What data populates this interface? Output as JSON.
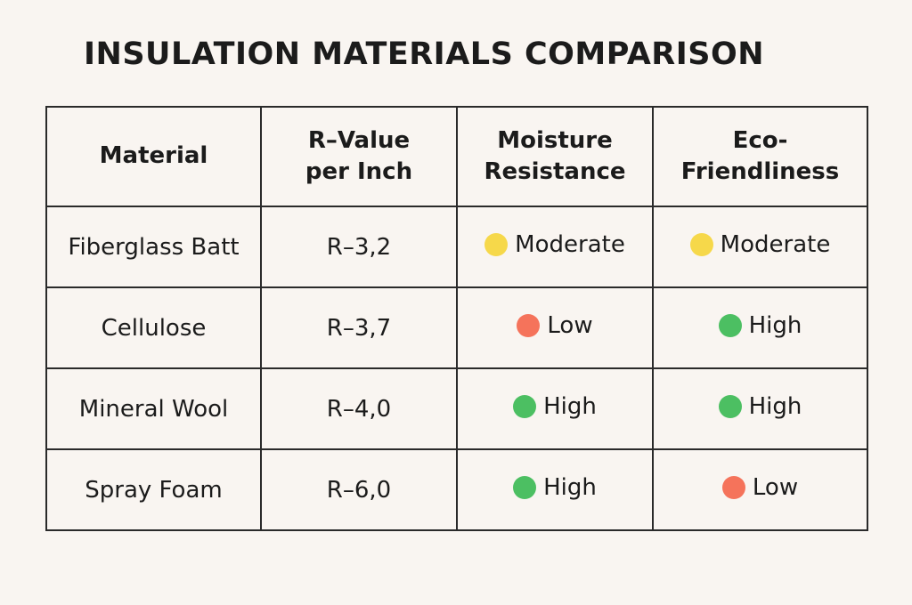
{
  "title": "INSULATION MATERIALS COMPARISON",
  "headers": [
    "Material",
    "R–Value per Inch",
    "Moisture Resistance",
    "Eco-Friendliness"
  ],
  "header_display": [
    "Material",
    "R–Value\nper Inch",
    "Moisture\nResistance",
    "Eco-\nFriendliness"
  ],
  "rating_colors": {
    "High": "#4cbf62",
    "Moderate": "#f6d84a",
    "Low": "#f5735b"
  },
  "rows": [
    {
      "material": "Fiberglass Batt",
      "r_value": "R–3,2",
      "moisture": "Moderate",
      "eco": "Moderate"
    },
    {
      "material": "Cellulose",
      "r_value": "R–3,7",
      "moisture": "Low",
      "eco": "High"
    },
    {
      "material": "Mineral Wool",
      "r_value": "R–4,0",
      "moisture": "High",
      "eco": "High"
    },
    {
      "material": "Spray Foam",
      "r_value": "R–6,0",
      "moisture": "High",
      "eco": "Low"
    }
  ]
}
